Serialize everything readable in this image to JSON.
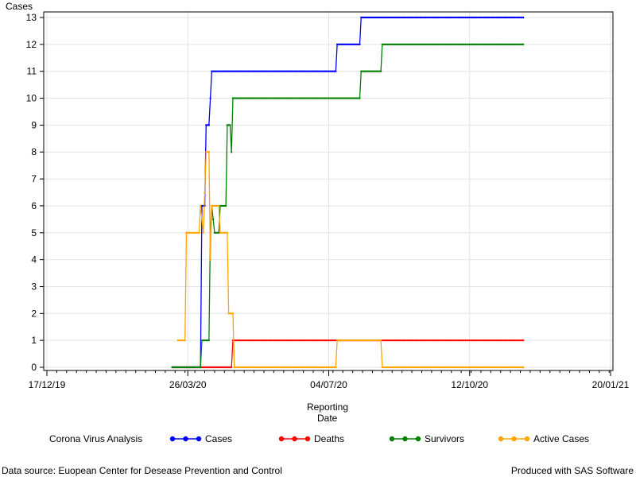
{
  "chart_data": {
    "type": "line",
    "ylabel": "Cases",
    "xlabel": "Reporting Date",
    "xlabel_lines": [
      "Reporting",
      "Date"
    ],
    "ylim": [
      0,
      13
    ],
    "y_ticks": [
      0,
      1,
      2,
      3,
      4,
      5,
      6,
      7,
      8,
      9,
      10,
      11,
      12,
      13
    ],
    "x_range": [
      "2019-12-17",
      "2021-01-20"
    ],
    "x_ticks": [
      {
        "date": "2019-12-17",
        "label": "17/12/19"
      },
      {
        "date": "2020-03-26",
        "label": "26/03/20"
      },
      {
        "date": "2020-07-04",
        "label": "04/07/20"
      },
      {
        "date": "2020-10-12",
        "label": "12/10/20"
      },
      {
        "date": "2021-01-20",
        "label": "20/01/21"
      }
    ],
    "grid": true,
    "legend_position": "bottom",
    "legend_title": "Corona Virus Analysis",
    "series": [
      {
        "name": "Cases",
        "color": "#0000ff",
        "points": [
          [
            "2020-03-15",
            0
          ],
          [
            "2020-03-20",
            0
          ],
          [
            "2020-03-27",
            0
          ],
          [
            "2020-04-04",
            0
          ],
          [
            "2020-04-05",
            6
          ],
          [
            "2020-04-07",
            6
          ],
          [
            "2020-04-08",
            9
          ],
          [
            "2020-04-10",
            9
          ],
          [
            "2020-04-12",
            11
          ],
          [
            "2020-05-15",
            11
          ],
          [
            "2020-06-20",
            11
          ],
          [
            "2020-07-09",
            11
          ],
          [
            "2020-07-10",
            12
          ],
          [
            "2020-07-26",
            12
          ],
          [
            "2020-07-27",
            13
          ],
          [
            "2020-09-30",
            13
          ],
          [
            "2020-11-19",
            13
          ]
        ]
      },
      {
        "name": "Deaths",
        "color": "#ff0000",
        "points": [
          [
            "2020-03-15",
            0
          ],
          [
            "2020-04-04",
            0
          ],
          [
            "2020-04-26",
            0
          ],
          [
            "2020-04-27",
            1
          ],
          [
            "2020-06-20",
            1
          ],
          [
            "2020-09-30",
            1
          ],
          [
            "2020-11-19",
            1
          ]
        ]
      },
      {
        "name": "Survivors",
        "color": "#008000",
        "points": [
          [
            "2020-03-15",
            0
          ],
          [
            "2020-04-04",
            0
          ],
          [
            "2020-04-05",
            1
          ],
          [
            "2020-04-10",
            1
          ],
          [
            "2020-04-11",
            5
          ],
          [
            "2020-04-12",
            6
          ],
          [
            "2020-04-14",
            5
          ],
          [
            "2020-04-17",
            5
          ],
          [
            "2020-04-18",
            6
          ],
          [
            "2020-04-22",
            6
          ],
          [
            "2020-04-23",
            9
          ],
          [
            "2020-04-25",
            9
          ],
          [
            "2020-04-26",
            8
          ],
          [
            "2020-04-27",
            10
          ],
          [
            "2020-06-20",
            10
          ],
          [
            "2020-07-26",
            10
          ],
          [
            "2020-07-27",
            11
          ],
          [
            "2020-08-10",
            11
          ],
          [
            "2020-08-11",
            12
          ],
          [
            "2020-09-30",
            12
          ],
          [
            "2020-11-19",
            12
          ]
        ]
      },
      {
        "name": "Active Cases",
        "color": "#ffa500",
        "points": [
          [
            "2020-03-19",
            1
          ],
          [
            "2020-03-24",
            1
          ],
          [
            "2020-03-25",
            5
          ],
          [
            "2020-04-03",
            5
          ],
          [
            "2020-04-04",
            6
          ],
          [
            "2020-04-06",
            5
          ],
          [
            "2020-04-08",
            8
          ],
          [
            "2020-04-10",
            8
          ],
          [
            "2020-04-11",
            4
          ],
          [
            "2020-04-12",
            6
          ],
          [
            "2020-04-17",
            6
          ],
          [
            "2020-04-18",
            5
          ],
          [
            "2020-04-23",
            5
          ],
          [
            "2020-04-24",
            2
          ],
          [
            "2020-04-27",
            2
          ],
          [
            "2020-04-28",
            0
          ],
          [
            "2020-06-20",
            0
          ],
          [
            "2020-07-09",
            0
          ],
          [
            "2020-07-10",
            1
          ],
          [
            "2020-08-10",
            1
          ],
          [
            "2020-08-11",
            0
          ],
          [
            "2020-09-30",
            0
          ],
          [
            "2020-11-19",
            0
          ]
        ]
      }
    ]
  },
  "footer": {
    "source": "Data source: Euopean Center for Desease Prevention and Control",
    "produced": "Produced with SAS Software"
  }
}
